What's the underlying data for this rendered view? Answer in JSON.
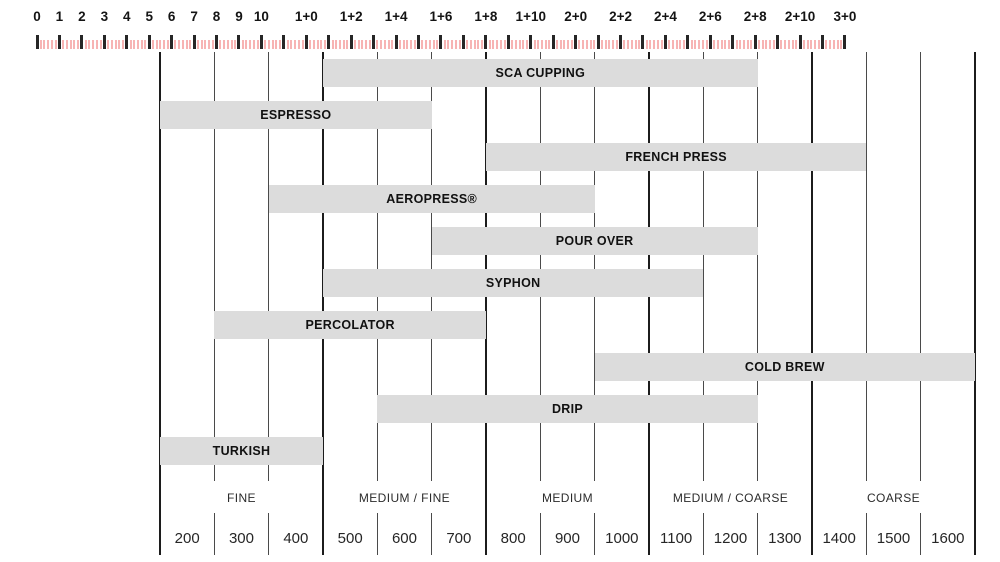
{
  "colors": {
    "background": "#ffffff",
    "bar_fill": "#dcdcdc",
    "bar_text": "#111111",
    "grid_minor": "#4a4a4a",
    "grid_major": "#1c1c1c",
    "ruler_tick_major": "#262626",
    "ruler_tick_minor": "#f7b4b4",
    "axis_text": "#2b2b2b"
  },
  "ruler": {
    "unit_count": 36,
    "subdivisions_per_unit": 6,
    "labels": [
      {
        "text": "0",
        "unit": 0
      },
      {
        "text": "1",
        "unit": 1
      },
      {
        "text": "2",
        "unit": 2
      },
      {
        "text": "3",
        "unit": 3
      },
      {
        "text": "4",
        "unit": 4
      },
      {
        "text": "5",
        "unit": 5
      },
      {
        "text": "6",
        "unit": 6
      },
      {
        "text": "7",
        "unit": 7
      },
      {
        "text": "8",
        "unit": 8
      },
      {
        "text": "9",
        "unit": 9
      },
      {
        "text": "10",
        "unit": 10
      },
      {
        "text": "1+0",
        "unit": 12
      },
      {
        "text": "1+2",
        "unit": 14
      },
      {
        "text": "1+4",
        "unit": 16
      },
      {
        "text": "1+6",
        "unit": 18
      },
      {
        "text": "1+8",
        "unit": 20
      },
      {
        "text": "1+10",
        "unit": 22
      },
      {
        "text": "2+0",
        "unit": 24
      },
      {
        "text": "2+2",
        "unit": 26
      },
      {
        "text": "2+4",
        "unit": 28
      },
      {
        "text": "2+6",
        "unit": 30
      },
      {
        "text": "2+8",
        "unit": 32
      },
      {
        "text": "2+10",
        "unit": 34
      },
      {
        "text": "3+0",
        "unit": 36
      }
    ]
  },
  "chart_data": {
    "type": "bar",
    "orientation": "horizontal-range",
    "title": "",
    "x_axis": {
      "unit": "microns",
      "tick_labels": [
        "200",
        "300",
        "400",
        "500",
        "600",
        "700",
        "800",
        "900",
        "1000",
        "1100",
        "1200",
        "1300",
        "1400",
        "1500",
        "1600"
      ],
      "range_microns": [
        150,
        1650
      ],
      "grid": "on",
      "major_line_every": 3
    },
    "grind_categories": [
      {
        "label": "FINE",
        "spans_ticks": [
          "200",
          "300",
          "400"
        ]
      },
      {
        "label": "MEDIUM / FINE",
        "spans_ticks": [
          "500",
          "600",
          "700"
        ]
      },
      {
        "label": "MEDIUM",
        "spans_ticks": [
          "800",
          "900",
          "1000"
        ]
      },
      {
        "label": "MEDIUM / COARSE",
        "spans_ticks": [
          "1100",
          "1200",
          "1300"
        ]
      },
      {
        "label": "COARSE",
        "spans_ticks": [
          "1400",
          "1500",
          "1600"
        ]
      }
    ],
    "series": [
      {
        "name": "SCA CUPPING",
        "micron_min": 450,
        "micron_max": 1250
      },
      {
        "name": "ESPRESSO",
        "micron_min": 150,
        "micron_max": 650
      },
      {
        "name": "FRENCH PRESS",
        "micron_min": 750,
        "micron_max": 1450
      },
      {
        "name": "AEROPRESS®",
        "micron_min": 350,
        "micron_max": 950
      },
      {
        "name": "POUR OVER",
        "micron_min": 650,
        "micron_max": 1250
      },
      {
        "name": "SYPHON",
        "micron_min": 450,
        "micron_max": 1150
      },
      {
        "name": "PERCOLATOR",
        "micron_min": 250,
        "micron_max": 750
      },
      {
        "name": "COLD BREW",
        "micron_min": 950,
        "micron_max": 1650
      },
      {
        "name": "DRIP",
        "micron_min": 550,
        "micron_max": 1250
      },
      {
        "name": "TURKISH",
        "micron_min": 150,
        "micron_max": 450
      }
    ]
  }
}
